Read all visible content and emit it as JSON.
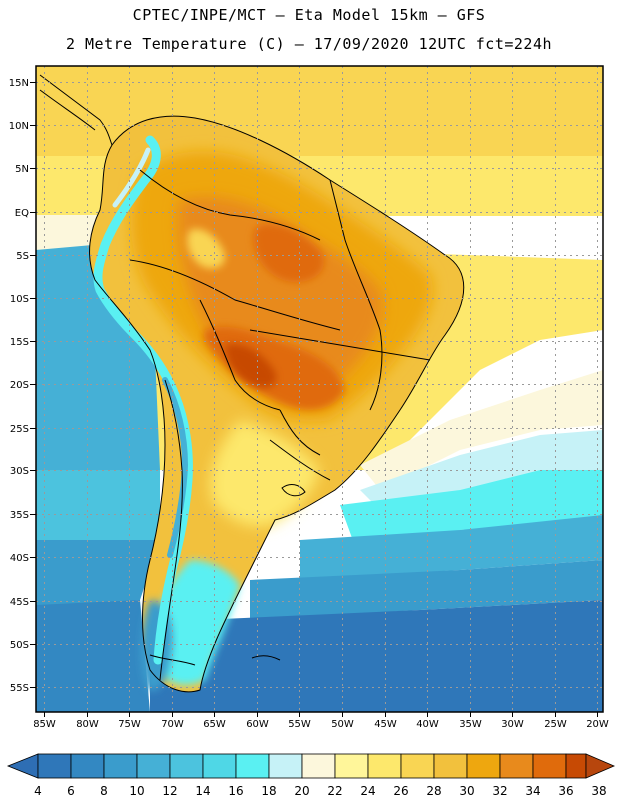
{
  "header": {
    "line1": "CPTEC/INPE/MCT –  Eta Model 15km – GFS",
    "line2": "2 Metre Temperature (C) – 17/09/2020 12UTC fct=224h"
  },
  "map": {
    "lat_labels": [
      "15N",
      "10N",
      "5N",
      "EQ",
      "5S",
      "10S",
      "15S",
      "20S",
      "25S",
      "30S",
      "35S",
      "40S",
      "45S",
      "50S",
      "55S"
    ],
    "lon_labels": [
      "85W",
      "80W",
      "75W",
      "70W",
      "65W",
      "60W",
      "55W",
      "50W",
      "45W",
      "40W",
      "35W",
      "30W",
      "25W",
      "20W"
    ],
    "lat_range": [
      17,
      -58
    ],
    "lon_range": [
      -85,
      -20
    ]
  },
  "colorbar": {
    "labels": [
      "4",
      "6",
      "8",
      "10",
      "12",
      "14",
      "16",
      "18",
      "20",
      "22",
      "24",
      "26",
      "28",
      "30",
      "32",
      "34",
      "36",
      "38"
    ],
    "colors": {
      "low_arrow": "#2e6eb4",
      "c4_6": "#2f77b9",
      "c6_8": "#3388c2",
      "c8_10": "#3a9ccc",
      "c10_12": "#45b0d6",
      "c12_14": "#4cc3de",
      "c14_16": "#4fd7e6",
      "c16_18": "#5af0f2",
      "c18_20": "#c6f2f7",
      "c20_22": "#fcf7dc",
      "c22_24": "#fff69a",
      "c24_26": "#fde86c",
      "c26_28": "#f9d553",
      "c28_30": "#f2c13d",
      "c30_32": "#eea70f",
      "c32_34": "#e88a1c",
      "c34_36": "#e06b0c",
      "c36_38": "#c74a04",
      "high_arrow": "#b7460d"
    }
  }
}
